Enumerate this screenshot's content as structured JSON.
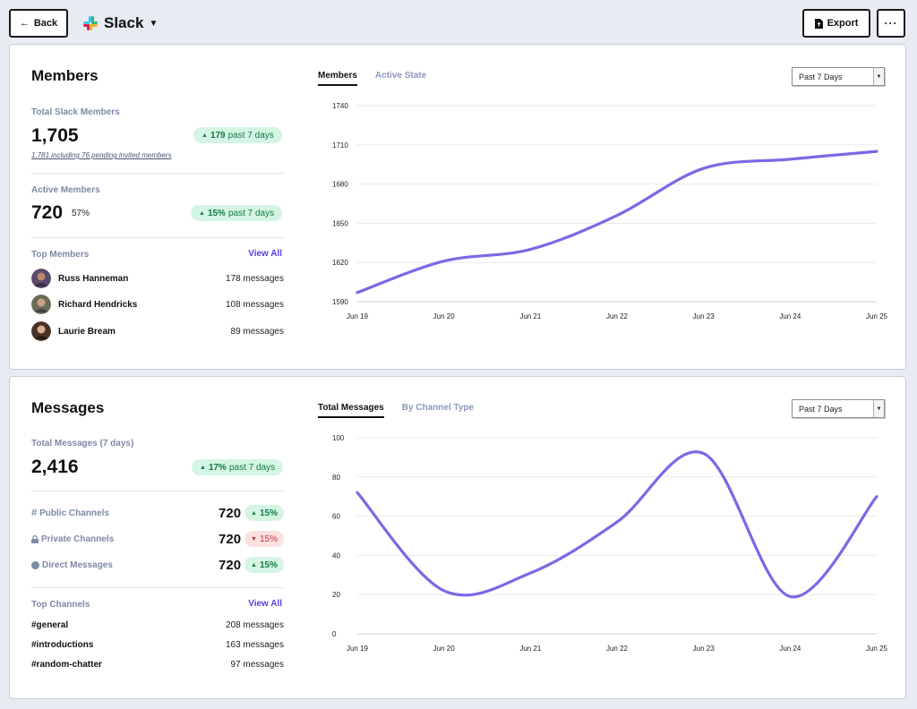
{
  "topbar": {
    "back_label": "Back",
    "app_name": "Slack",
    "export_label": "Export",
    "more_label": "···"
  },
  "members": {
    "title": "Members",
    "total_label": "Total Slack Members",
    "total_value": "1,705",
    "total_change_value": "179",
    "total_change_text": "past 7 days",
    "total_note": "1,781 including 76 pending invited members",
    "active_label": "Active Members",
    "active_value": "720",
    "active_pct": "57%",
    "active_change_value": "15%",
    "active_change_text": "past 7 days",
    "top_label": "Top Members",
    "view_all": "View All",
    "top": [
      {
        "name": "Russ Hanneman",
        "value": "178 messages"
      },
      {
        "name": "Richard Hendricks",
        "value": "108 messages"
      },
      {
        "name": "Laurie Bream",
        "value": "89 messages"
      }
    ],
    "tabs": [
      "Members",
      "Active State"
    ],
    "range": "Past 7 Days"
  },
  "messages": {
    "title": "Messages",
    "total_label": "Total Messages (7 days)",
    "total_value": "2,416",
    "total_change_value": "17%",
    "total_change_text": "past 7 days",
    "types": [
      {
        "name": "Public Channels",
        "value": "720",
        "change": "15%",
        "direction": "up",
        "icon": "hash-icon"
      },
      {
        "name": "Private Channels",
        "value": "720",
        "change": "15%",
        "direction": "down",
        "icon": "lock-icon"
      },
      {
        "name": "Direct Messages",
        "value": "720",
        "change": "15%",
        "direction": "up",
        "icon": "dot-icon"
      }
    ],
    "top_label": "Top Channels",
    "view_all": "View All",
    "top": [
      {
        "name": "#general",
        "value": "208 messages"
      },
      {
        "name": "#introductions",
        "value": "163 messages"
      },
      {
        "name": "#random-chatter",
        "value": "97 messages"
      }
    ],
    "tabs": [
      "Total Messages",
      "By Channel Type"
    ],
    "range": "Past 7 Days"
  },
  "colors": {
    "accent": "#7c68e6",
    "link": "#5b3fe0",
    "up_bg": "#d5f5e4",
    "up_fg": "#127a46",
    "down_bg": "#fde0e0",
    "down_fg": "#c03535"
  },
  "chart_data": [
    {
      "type": "line",
      "x": [
        "Jun 19",
        "Jun 20",
        "Jun 21",
        "Jun 22",
        "Jun 23",
        "Jun 24",
        "Jun 25"
      ],
      "series": [
        {
          "values": [
            1597,
            1621,
            1630,
            1656,
            1692,
            1699,
            1705
          ]
        }
      ],
      "yticks": [
        1590,
        1620,
        1650,
        1680,
        1710,
        1740
      ],
      "ylim": [
        1590,
        1740
      ],
      "grid": true
    },
    {
      "type": "line",
      "x": [
        "Jun 19",
        "Jun 20",
        "Jun 21",
        "Jun 22",
        "Jun 23",
        "Jun 24",
        "Jun 25"
      ],
      "series": [
        {
          "values": [
            72,
            22,
            31,
            57,
            92,
            19,
            70
          ]
        }
      ],
      "yticks": [
        0,
        20,
        40,
        60,
        80,
        100
      ],
      "ylim": [
        0,
        100
      ],
      "grid": true
    }
  ]
}
